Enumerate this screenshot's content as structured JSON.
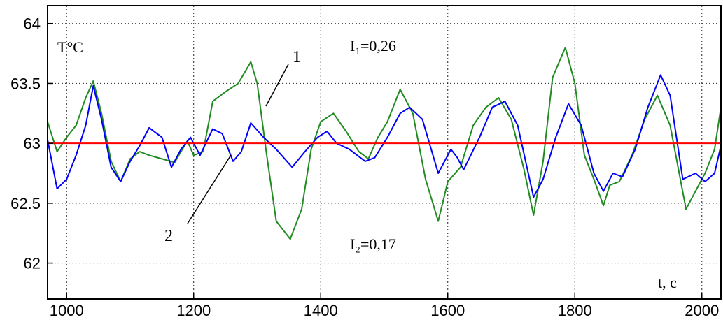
{
  "chart_data": {
    "type": "line",
    "ylabel": "T°C",
    "xlabel": "t, c",
    "xlim": [
      970,
      2030
    ],
    "ylim": [
      61.7,
      64.15
    ],
    "x_ticks": [
      1000,
      1200,
      1400,
      1600,
      1800,
      2000
    ],
    "y_ticks": [
      62,
      62.5,
      63,
      63.5,
      64
    ],
    "grid": true,
    "colors": {
      "series_1": "#228b22",
      "series_2": "#0000ff",
      "reference": "#ff0000"
    },
    "reference_line": {
      "y": 63
    },
    "annotations": {
      "i1": "I₁=0,26",
      "i2": "I₂=0,17",
      "label1": "1",
      "label2": "2"
    },
    "series": [
      {
        "id": "1",
        "x": [
          970,
          985,
          1000,
          1015,
          1030,
          1042,
          1055,
          1070,
          1085,
          1100,
          1115,
          1130,
          1150,
          1170,
          1190,
          1200,
          1215,
          1230,
          1250,
          1270,
          1290,
          1300,
          1315,
          1330,
          1352,
          1370,
          1385,
          1400,
          1420,
          1440,
          1460,
          1475,
          1490,
          1505,
          1525,
          1545,
          1565,
          1585,
          1600,
          1620,
          1640,
          1660,
          1680,
          1700,
          1720,
          1735,
          1750,
          1765,
          1785,
          1800,
          1815,
          1830,
          1845,
          1855,
          1870,
          1890,
          1910,
          1930,
          1950,
          1975,
          1990,
          2005,
          2020,
          2030
        ],
        "y": [
          63.18,
          62.93,
          63.05,
          63.15,
          63.38,
          63.52,
          63.25,
          62.85,
          62.68,
          62.87,
          62.93,
          62.9,
          62.87,
          62.84,
          63.02,
          62.9,
          62.93,
          63.35,
          63.43,
          63.5,
          63.68,
          63.5,
          62.9,
          62.35,
          62.2,
          62.45,
          62.95,
          63.18,
          63.25,
          63.1,
          62.93,
          62.87,
          63.05,
          63.18,
          63.45,
          63.25,
          62.7,
          62.35,
          62.68,
          62.8,
          63.15,
          63.3,
          63.38,
          63.2,
          62.78,
          62.4,
          62.85,
          63.55,
          63.8,
          63.5,
          62.9,
          62.7,
          62.48,
          62.65,
          62.68,
          62.9,
          63.2,
          63.4,
          63.15,
          62.45,
          62.6,
          62.75,
          62.95,
          63.3
        ]
      },
      {
        "id": "2",
        "x": [
          970,
          985,
          1000,
          1015,
          1030,
          1042,
          1055,
          1070,
          1085,
          1100,
          1115,
          1130,
          1150,
          1165,
          1180,
          1195,
          1210,
          1230,
          1245,
          1262,
          1275,
          1290,
          1310,
          1330,
          1355,
          1375,
          1395,
          1410,
          1425,
          1445,
          1470,
          1485,
          1505,
          1525,
          1540,
          1560,
          1585,
          1605,
          1615,
          1625,
          1650,
          1670,
          1690,
          1710,
          1735,
          1750,
          1770,
          1790,
          1810,
          1830,
          1845,
          1860,
          1875,
          1895,
          1915,
          1935,
          1950,
          1970,
          1990,
          2005,
          2020,
          2030
        ],
        "y": [
          63.03,
          62.62,
          62.7,
          62.9,
          63.15,
          63.48,
          63.2,
          62.8,
          62.68,
          62.85,
          62.98,
          63.13,
          63.05,
          62.8,
          62.95,
          63.05,
          62.9,
          63.12,
          63.08,
          62.85,
          62.93,
          63.17,
          63.05,
          62.95,
          62.8,
          62.93,
          63.05,
          63.1,
          63.0,
          62.95,
          62.85,
          62.88,
          63.05,
          63.25,
          63.3,
          63.2,
          62.75,
          62.95,
          62.88,
          62.78,
          63.05,
          63.3,
          63.35,
          63.15,
          62.55,
          62.7,
          63.05,
          63.33,
          63.15,
          62.75,
          62.6,
          62.75,
          62.72,
          62.95,
          63.3,
          63.57,
          63.4,
          62.7,
          62.75,
          62.68,
          62.75,
          62.98
        ]
      }
    ]
  }
}
